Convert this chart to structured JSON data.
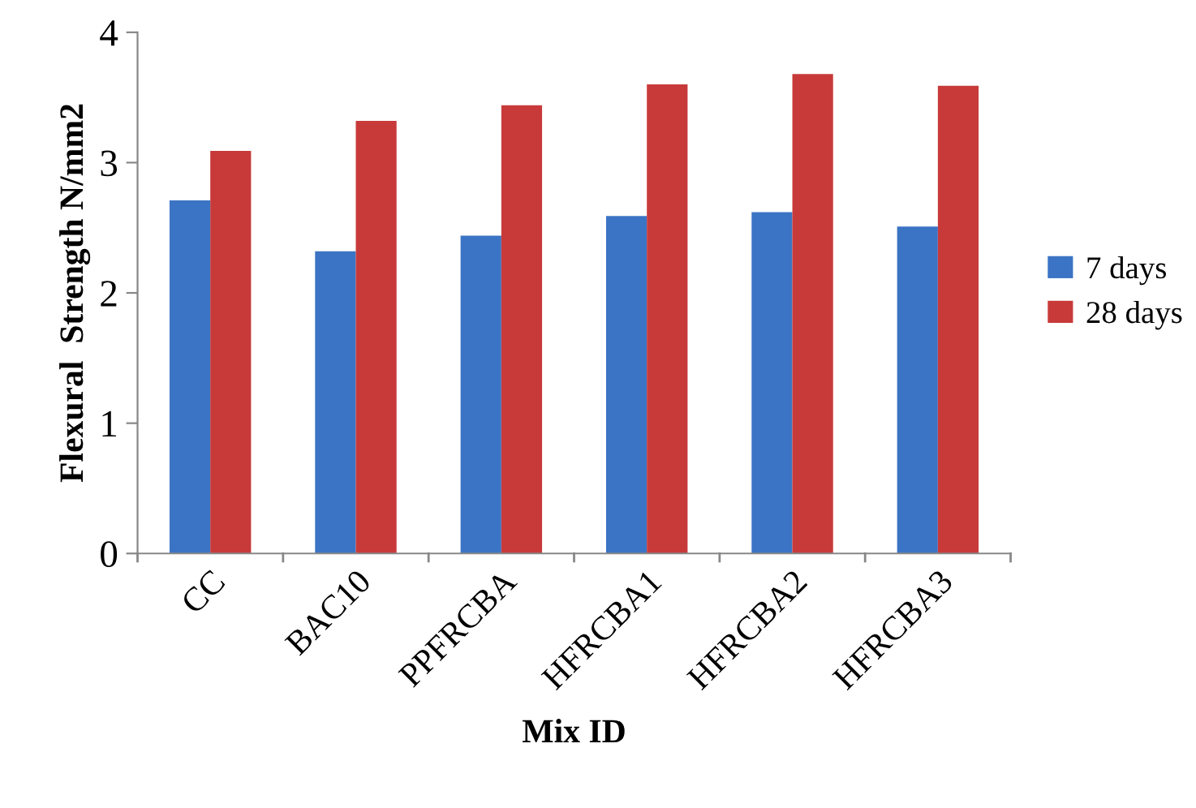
{
  "chart_data": {
    "type": "bar",
    "xlabel": "Mix ID",
    "ylabel": "Flexural  Strength N/mm2",
    "categories": [
      "CC",
      "BAC10",
      "PPFRCBA",
      "HFRCBA1",
      "HFRCBA2",
      "HFRCBA3"
    ],
    "series": [
      {
        "name": "7 days",
        "color": "#3b74c4",
        "values": [
          2.71,
          2.32,
          2.44,
          2.59,
          2.62,
          2.51
        ]
      },
      {
        "name": "28 days",
        "color": "#c83a3a",
        "values": [
          3.09,
          3.32,
          3.44,
          3.6,
          3.68,
          3.59
        ]
      }
    ],
    "ylim": [
      0,
      4
    ],
    "yticks": [
      0,
      1,
      2,
      3,
      4
    ],
    "grid": false,
    "legend": "right"
  }
}
